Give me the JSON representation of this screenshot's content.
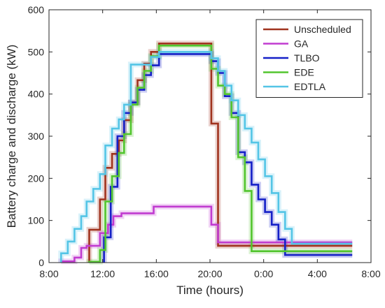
{
  "chart_data": {
    "type": "line",
    "step": true,
    "title": "",
    "xlabel": "Time (hours)",
    "ylabel": "Battery charge and discharge (kW)",
    "xlim": [
      8,
      32
    ],
    "ylim": [
      0,
      600
    ],
    "x_ticks": [
      8,
      12,
      16,
      20,
      24,
      28,
      32
    ],
    "x_tick_labels": [
      "8:00",
      "12:00",
      "16:00",
      "20:00",
      "0:00",
      "4:00",
      "8:00"
    ],
    "y_ticks": [
      0,
      100,
      200,
      300,
      400,
      500,
      600
    ],
    "y_tick_labels": [
      "0",
      "100",
      "200",
      "300",
      "400",
      "500",
      "600"
    ],
    "grid": false,
    "legend_position": "top-right",
    "series": [
      {
        "name": "Unscheduled",
        "color": "#a0331e",
        "points": [
          [
            11.0,
            0
          ],
          [
            11.0,
            78
          ],
          [
            11.8,
            78
          ],
          [
            11.8,
            150
          ],
          [
            12.2,
            150
          ],
          [
            12.2,
            225
          ],
          [
            12.7,
            225
          ],
          [
            12.7,
            258
          ],
          [
            13.2,
            258
          ],
          [
            13.2,
            290
          ],
          [
            13.6,
            290
          ],
          [
            13.6,
            338
          ],
          [
            14.1,
            338
          ],
          [
            14.1,
            380
          ],
          [
            14.6,
            380
          ],
          [
            14.6,
            433
          ],
          [
            15.1,
            433
          ],
          [
            15.1,
            472
          ],
          [
            15.6,
            472
          ],
          [
            15.6,
            500
          ],
          [
            16.2,
            500
          ],
          [
            16.2,
            520
          ],
          [
            20.1,
            520
          ],
          [
            20.1,
            330
          ],
          [
            20.6,
            330
          ],
          [
            20.6,
            40
          ],
          [
            30.6,
            40
          ]
        ]
      },
      {
        "name": "GA",
        "color": "#c13bd0",
        "points": [
          [
            8.9,
            0
          ],
          [
            8.9,
            3
          ],
          [
            9.9,
            3
          ],
          [
            9.9,
            12
          ],
          [
            10.4,
            12
          ],
          [
            10.4,
            35
          ],
          [
            10.8,
            35
          ],
          [
            10.8,
            40
          ],
          [
            11.8,
            40
          ],
          [
            11.8,
            70
          ],
          [
            12.4,
            70
          ],
          [
            12.4,
            90
          ],
          [
            12.8,
            90
          ],
          [
            12.8,
            110
          ],
          [
            13.4,
            110
          ],
          [
            13.4,
            117
          ],
          [
            15.8,
            117
          ],
          [
            15.8,
            133
          ],
          [
            20.1,
            133
          ],
          [
            20.1,
            90
          ],
          [
            20.6,
            90
          ],
          [
            20.6,
            48
          ],
          [
            30.6,
            48
          ]
        ]
      },
      {
        "name": "TLBO",
        "color": "#1520c7",
        "points": [
          [
            12.1,
            0
          ],
          [
            12.1,
            60
          ],
          [
            12.6,
            60
          ],
          [
            12.6,
            180
          ],
          [
            13.1,
            180
          ],
          [
            13.1,
            300
          ],
          [
            13.6,
            300
          ],
          [
            13.6,
            355
          ],
          [
            14.1,
            355
          ],
          [
            14.1,
            380
          ],
          [
            14.6,
            380
          ],
          [
            14.6,
            410
          ],
          [
            15.1,
            410
          ],
          [
            15.1,
            445
          ],
          [
            15.6,
            445
          ],
          [
            15.6,
            468
          ],
          [
            16.2,
            468
          ],
          [
            16.2,
            495
          ],
          [
            20.1,
            495
          ],
          [
            20.1,
            478
          ],
          [
            20.6,
            478
          ],
          [
            20.6,
            450
          ],
          [
            21.1,
            450
          ],
          [
            21.1,
            395
          ],
          [
            21.6,
            395
          ],
          [
            21.6,
            355
          ],
          [
            22.1,
            355
          ],
          [
            22.1,
            262
          ],
          [
            22.6,
            262
          ],
          [
            22.6,
            238
          ],
          [
            23.1,
            238
          ],
          [
            23.1,
            185
          ],
          [
            23.6,
            185
          ],
          [
            23.6,
            150
          ],
          [
            24.1,
            150
          ],
          [
            24.1,
            120
          ],
          [
            24.6,
            120
          ],
          [
            24.6,
            90
          ],
          [
            25.1,
            90
          ],
          [
            25.1,
            55
          ],
          [
            25.6,
            55
          ],
          [
            25.6,
            18
          ],
          [
            30.6,
            18
          ]
        ]
      },
      {
        "name": "EDE",
        "color": "#52c52e",
        "points": [
          [
            11.0,
            0
          ],
          [
            11.0,
            2
          ],
          [
            11.8,
            2
          ],
          [
            11.8,
            30
          ],
          [
            12.2,
            30
          ],
          [
            12.2,
            145
          ],
          [
            12.7,
            145
          ],
          [
            12.7,
            205
          ],
          [
            13.2,
            205
          ],
          [
            13.2,
            260
          ],
          [
            13.6,
            260
          ],
          [
            13.6,
            305
          ],
          [
            14.1,
            305
          ],
          [
            14.1,
            375
          ],
          [
            14.6,
            375
          ],
          [
            14.6,
            415
          ],
          [
            15.1,
            415
          ],
          [
            15.1,
            455
          ],
          [
            15.6,
            455
          ],
          [
            15.6,
            490
          ],
          [
            16.2,
            490
          ],
          [
            16.2,
            515
          ],
          [
            20.1,
            515
          ],
          [
            20.1,
            460
          ],
          [
            20.6,
            460
          ],
          [
            20.6,
            420
          ],
          [
            21.1,
            420
          ],
          [
            21.1,
            400
          ],
          [
            21.6,
            400
          ],
          [
            21.6,
            345
          ],
          [
            22.1,
            345
          ],
          [
            22.1,
            250
          ],
          [
            22.6,
            250
          ],
          [
            22.6,
            170
          ],
          [
            23.1,
            170
          ],
          [
            23.1,
            27
          ],
          [
            30.6,
            27
          ]
        ]
      },
      {
        "name": "EDTLA",
        "color": "#54c5e6",
        "points": [
          [
            8.9,
            0
          ],
          [
            8.9,
            22
          ],
          [
            9.4,
            22
          ],
          [
            9.4,
            50
          ],
          [
            9.9,
            50
          ],
          [
            9.9,
            80
          ],
          [
            10.4,
            80
          ],
          [
            10.4,
            110
          ],
          [
            10.8,
            110
          ],
          [
            10.8,
            145
          ],
          [
            11.3,
            145
          ],
          [
            11.3,
            175
          ],
          [
            11.8,
            175
          ],
          [
            11.8,
            210
          ],
          [
            12.2,
            210
          ],
          [
            12.2,
            278
          ],
          [
            12.7,
            278
          ],
          [
            12.7,
            318
          ],
          [
            13.2,
            318
          ],
          [
            13.2,
            340
          ],
          [
            13.6,
            340
          ],
          [
            13.6,
            375
          ],
          [
            14.1,
            375
          ],
          [
            14.1,
            470
          ],
          [
            15.6,
            470
          ],
          [
            15.6,
            488
          ],
          [
            16.2,
            488
          ],
          [
            16.2,
            500
          ],
          [
            20.1,
            500
          ],
          [
            20.1,
            485
          ],
          [
            20.6,
            485
          ],
          [
            20.6,
            455
          ],
          [
            21.1,
            455
          ],
          [
            21.1,
            420
          ],
          [
            21.6,
            420
          ],
          [
            21.6,
            385
          ],
          [
            22.1,
            385
          ],
          [
            22.1,
            350
          ],
          [
            22.6,
            350
          ],
          [
            22.6,
            318
          ],
          [
            23.1,
            318
          ],
          [
            23.1,
            285
          ],
          [
            23.6,
            285
          ],
          [
            23.6,
            245
          ],
          [
            24.1,
            245
          ],
          [
            24.1,
            205
          ],
          [
            24.6,
            205
          ],
          [
            24.6,
            165
          ],
          [
            25.1,
            165
          ],
          [
            25.1,
            120
          ],
          [
            25.6,
            120
          ],
          [
            25.6,
            80
          ],
          [
            26.1,
            80
          ],
          [
            26.1,
            45
          ],
          [
            30.6,
            45
          ]
        ]
      }
    ]
  }
}
